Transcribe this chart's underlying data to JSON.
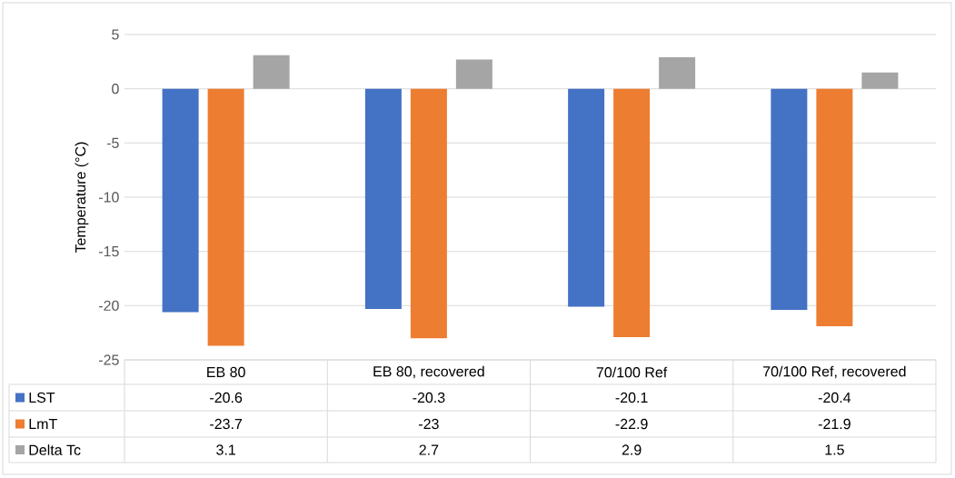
{
  "chart_data": {
    "type": "bar",
    "ylabel": "Temperature (°C)",
    "categories": [
      "EB 80",
      "EB 80, recovered",
      "70/100 Ref",
      "70/100 Ref, recovered"
    ],
    "series": [
      {
        "name": "LST",
        "color": "#4472c4",
        "values": [
          -20.6,
          -20.3,
          -20.1,
          -20.4
        ]
      },
      {
        "name": "LmT",
        "color": "#ed7d31",
        "values": [
          -23.7,
          -23,
          -22.9,
          -21.9
        ]
      },
      {
        "name": "Delta Tc",
        "color": "#a5a5a5",
        "values": [
          3.1,
          2.7,
          2.9,
          1.5
        ]
      }
    ],
    "ylim": [
      -25,
      5
    ],
    "yticks": [
      -25,
      -20,
      -15,
      -10,
      -5,
      0,
      5
    ],
    "grid": "y",
    "legend": "bottom",
    "data_labels": true
  }
}
